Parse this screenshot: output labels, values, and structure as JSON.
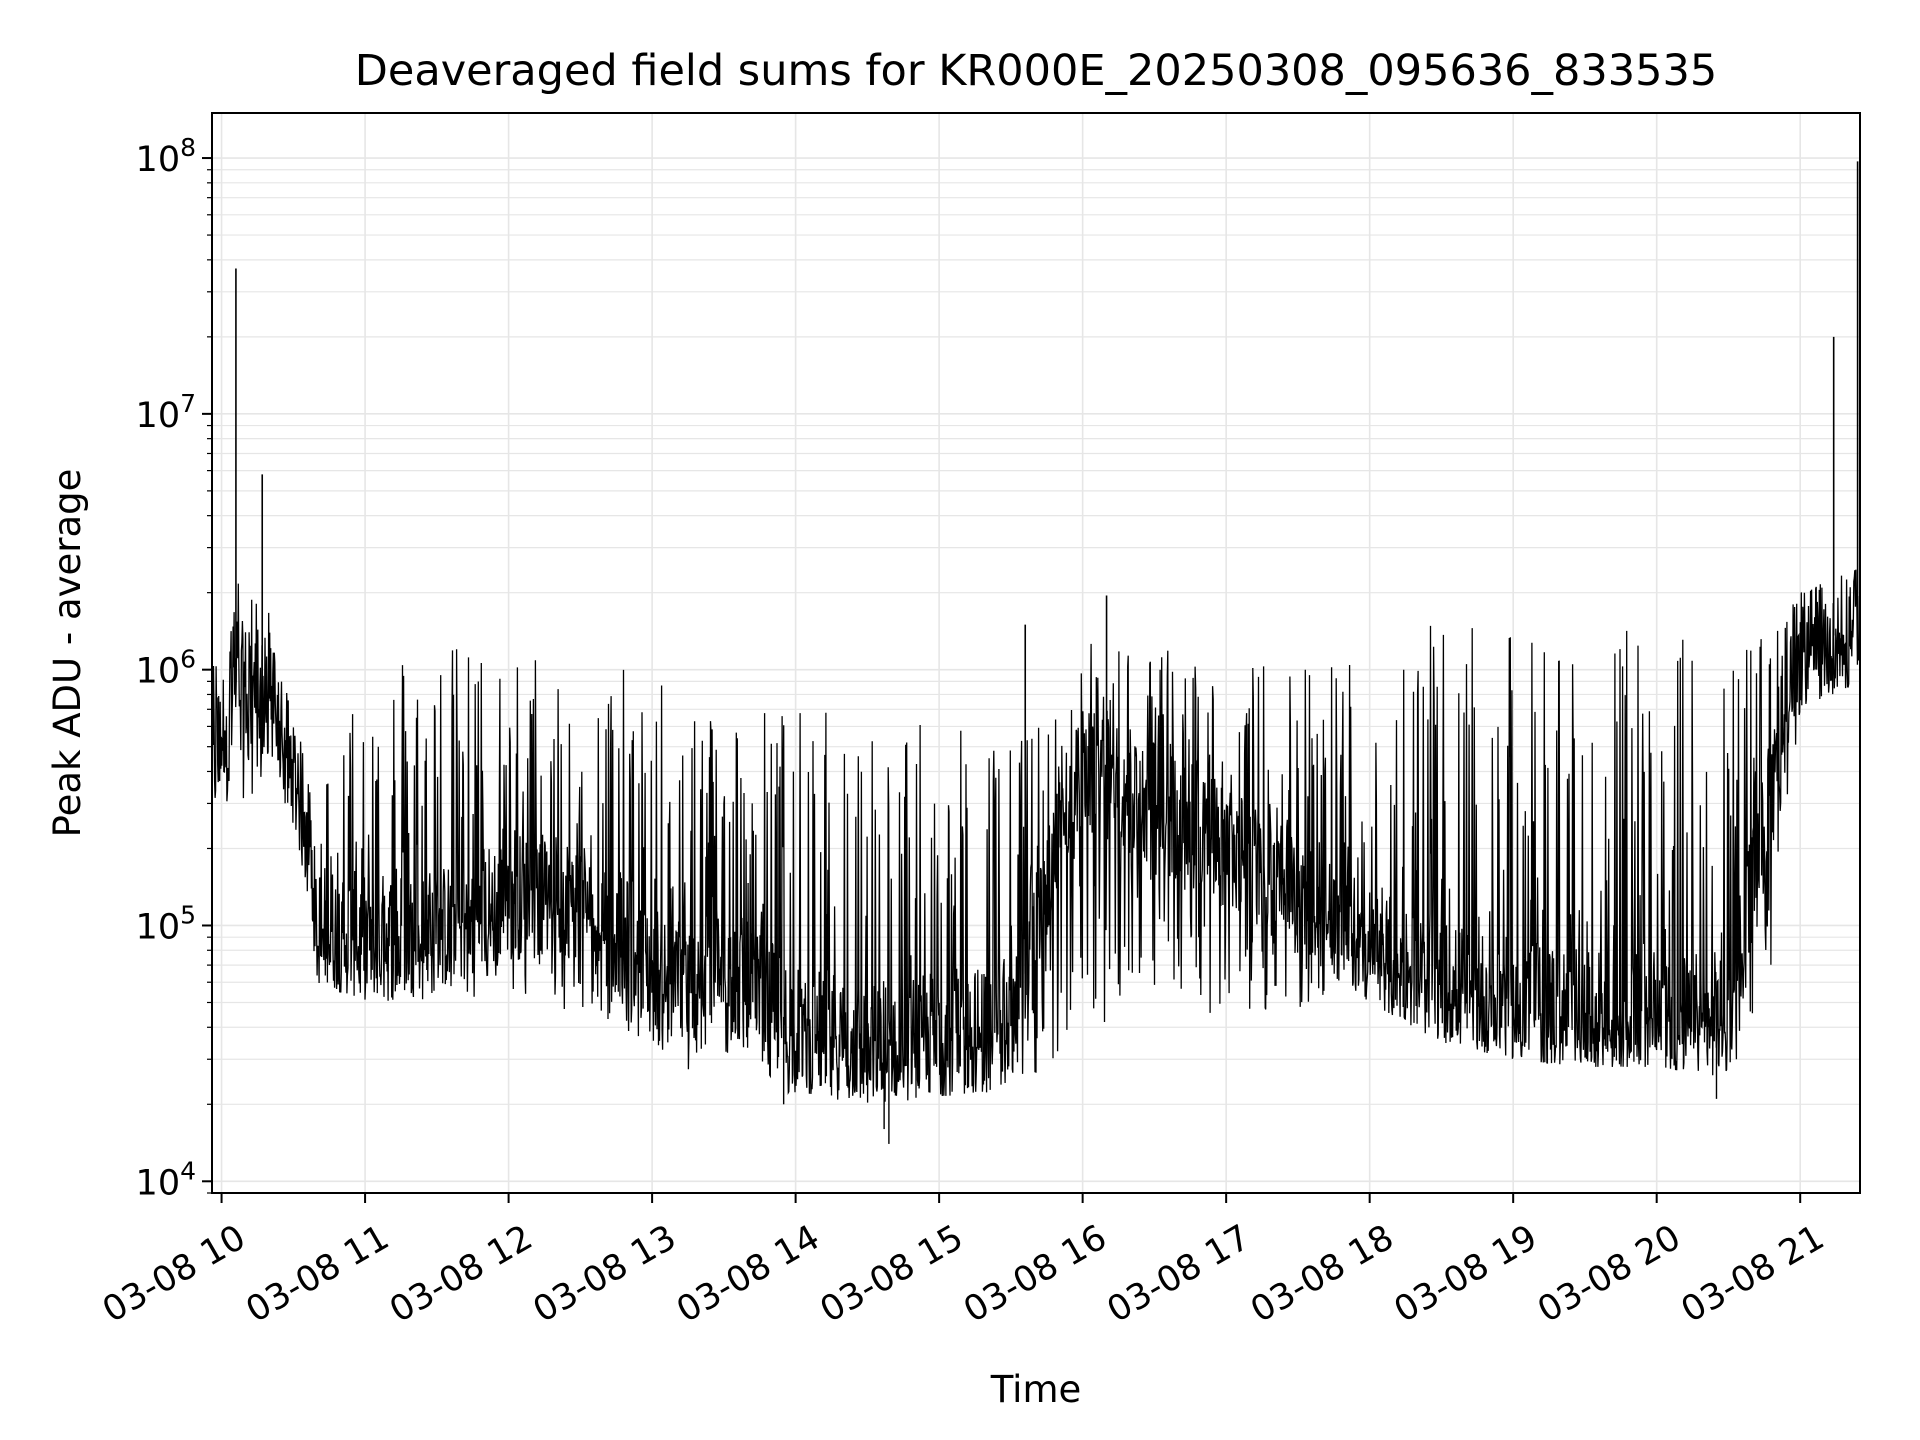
{
  "chart_data": {
    "type": "line",
    "title": "Deaveraged field sums for KR000E_20250308_095636_833535",
    "xlabel": "Time",
    "ylabel": "Peak ADU - average",
    "yscale": "log",
    "ylim": [
      9000,
      150000000
    ],
    "xlim": [
      "2025-03-08 09:56",
      "2025-03-08 21:25"
    ],
    "grid": true,
    "line_color": "#000000",
    "grid_color": "#e6e6e6",
    "x_ticks": [
      {
        "t": "2025-03-08 10:00",
        "label": "03-08 10"
      },
      {
        "t": "2025-03-08 11:00",
        "label": "03-08 11"
      },
      {
        "t": "2025-03-08 12:00",
        "label": "03-08 12"
      },
      {
        "t": "2025-03-08 13:00",
        "label": "03-08 13"
      },
      {
        "t": "2025-03-08 14:00",
        "label": "03-08 14"
      },
      {
        "t": "2025-03-08 15:00",
        "label": "03-08 15"
      },
      {
        "t": "2025-03-08 16:00",
        "label": "03-08 16"
      },
      {
        "t": "2025-03-08 17:00",
        "label": "03-08 17"
      },
      {
        "t": "2025-03-08 18:00",
        "label": "03-08 18"
      },
      {
        "t": "2025-03-08 19:00",
        "label": "03-08 19"
      },
      {
        "t": "2025-03-08 20:00",
        "label": "03-08 20"
      },
      {
        "t": "2025-03-08 21:00",
        "label": "03-08 21"
      }
    ],
    "y_ticks": [
      {
        "value": 10000,
        "base": "10",
        "exp": "4"
      },
      {
        "value": 100000,
        "base": "10",
        "exp": "5"
      },
      {
        "value": 1000000,
        "base": "10",
        "exp": "6"
      },
      {
        "value": 10000000,
        "base": "10",
        "exp": "7"
      },
      {
        "value": 100000000,
        "base": "10",
        "exp": "8"
      }
    ],
    "series": [
      {
        "color": "#000000",
        "envelope": [
          {
            "t": "2025-03-08 09:56",
            "low": 300000,
            "high": 1100000,
            "base": 400000
          },
          {
            "t": "2025-03-08 10:05",
            "low": 300000,
            "high": 2400000,
            "base": 900000
          },
          {
            "t": "2025-03-08 10:20",
            "low": 350000,
            "high": 1800000,
            "base": 800000
          },
          {
            "t": "2025-03-08 10:30",
            "low": 250000,
            "high": 600000,
            "base": 400000
          },
          {
            "t": "2025-03-08 10:35",
            "low": 150000,
            "high": 500000,
            "base": 250000
          },
          {
            "t": "2025-03-08 10:40",
            "low": 60000,
            "high": 350000,
            "base": 100000
          },
          {
            "t": "2025-03-08 11:00",
            "low": 50000,
            "high": 1300000,
            "base": 90000
          },
          {
            "t": "2025-03-08 11:30",
            "low": 50000,
            "high": 1300000,
            "base": 95000
          },
          {
            "t": "2025-03-08 12:00",
            "low": 55000,
            "high": 1250000,
            "base": 130000
          },
          {
            "t": "2025-03-08 12:30",
            "low": 45000,
            "high": 1200000,
            "base": 130000
          },
          {
            "t": "2025-03-08 13:00",
            "low": 35000,
            "high": 900000,
            "base": 70000
          },
          {
            "t": "2025-03-08 13:15",
            "low": 25000,
            "high": 900000,
            "base": 60000
          },
          {
            "t": "2025-03-08 13:30",
            "low": 30000,
            "high": 800000,
            "base": 70000
          },
          {
            "t": "2025-03-08 14:00",
            "low": 21000,
            "high": 720000,
            "base": 40000
          },
          {
            "t": "2025-03-08 14:30",
            "low": 19000,
            "high": 700000,
            "base": 35000
          },
          {
            "t": "2025-03-08 15:00",
            "low": 21000,
            "high": 600000,
            "base": 38000
          },
          {
            "t": "2025-03-08 15:30",
            "low": 21000,
            "high": 550000,
            "base": 40000
          },
          {
            "t": "2025-03-08 15:50",
            "low": 30000,
            "high": 700000,
            "base": 200000
          },
          {
            "t": "2025-03-08 16:00",
            "low": 40000,
            "high": 1300000,
            "base": 400000
          },
          {
            "t": "2025-03-08 16:30",
            "low": 45000,
            "high": 1300000,
            "base": 300000
          },
          {
            "t": "2025-03-08 17:00",
            "low": 45000,
            "high": 1000000,
            "base": 200000
          },
          {
            "t": "2025-03-08 17:30",
            "low": 45000,
            "high": 1200000,
            "base": 150000
          },
          {
            "t": "2025-03-08 17:50",
            "low": 60000,
            "high": 1300000,
            "base": 100000
          },
          {
            "t": "2025-03-08 18:00",
            "low": 50000,
            "high": 1500000,
            "base": 80000
          },
          {
            "t": "2025-03-08 18:30",
            "low": 35000,
            "high": 1500000,
            "base": 60000
          },
          {
            "t": "2025-03-08 19:00",
            "low": 30000,
            "high": 1400000,
            "base": 50000
          },
          {
            "t": "2025-03-08 19:30",
            "low": 28000,
            "high": 1400000,
            "base": 45000
          },
          {
            "t": "2025-03-08 20:00",
            "low": 28000,
            "high": 1450000,
            "base": 45000
          },
          {
            "t": "2025-03-08 20:30",
            "low": 25000,
            "high": 1350000,
            "base": 45000
          },
          {
            "t": "2025-03-08 20:47",
            "low": 60000,
            "high": 1400000,
            "base": 300000
          },
          {
            "t": "2025-03-08 21:00",
            "low": 700000,
            "high": 2000000,
            "base": 1200000
          },
          {
            "t": "2025-03-08 21:25",
            "low": 900000,
            "high": 2500000,
            "base": 1500000
          }
        ],
        "spikes": [
          {
            "t": "2025-03-08 10:06",
            "value": 37000000
          },
          {
            "t": "2025-03-08 10:17",
            "value": 5800000
          },
          {
            "t": "2025-03-08 15:36",
            "value": 1500000
          },
          {
            "t": "2025-03-08 16:10",
            "value": 1950000
          },
          {
            "t": "2025-03-08 21:14",
            "value": 20000000
          },
          {
            "t": "2025-03-08 21:24",
            "value": 97000000
          }
        ],
        "dips": [
          {
            "t": "2025-03-08 14:39",
            "value": 14000
          },
          {
            "t": "2025-03-08 14:37",
            "value": 16000
          },
          {
            "t": "2025-03-08 13:55",
            "value": 20000
          },
          {
            "t": "2025-03-08 20:25",
            "value": 21000
          }
        ]
      }
    ]
  }
}
